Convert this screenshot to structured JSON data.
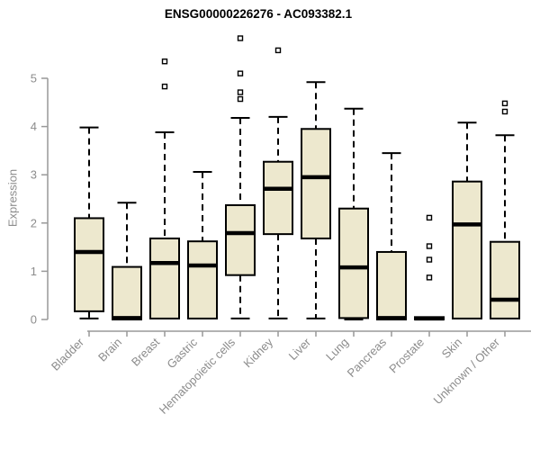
{
  "title": "ENSG00000226276 - AC093382.1",
  "chart_data": {
    "type": "boxplot",
    "title": "ENSG00000226276 - AC093382.1",
    "xlabel": "",
    "ylabel": "Expression",
    "ylim": [
      0,
      5
    ],
    "yticks": [
      0,
      1,
      2,
      3,
      4,
      5
    ],
    "grid": false,
    "categories": [
      "Bladder",
      "Brain",
      "Breast",
      "Gastric",
      "Hematopoietic cells",
      "Kidney",
      "Liver",
      "Lung",
      "Pancreas",
      "Prostate",
      "Skin",
      "Unknown / Other"
    ],
    "series": [
      {
        "category": "Bladder",
        "whisker_low": 0.02,
        "q1": 0.17,
        "median": 1.4,
        "q3": 2.1,
        "whisker_high": 3.98,
        "outliers": []
      },
      {
        "category": "Brain",
        "whisker_low": 0.0,
        "q1": 0.0,
        "median": 0.03,
        "q3": 1.09,
        "whisker_high": 2.42,
        "outliers": []
      },
      {
        "category": "Breast",
        "whisker_low": 0.0,
        "q1": 0.02,
        "median": 1.17,
        "q3": 1.68,
        "whisker_high": 3.88,
        "outliers": [
          4.83,
          5.35
        ]
      },
      {
        "category": "Gastric",
        "whisker_low": 0.0,
        "q1": 0.02,
        "median": 1.12,
        "q3": 1.62,
        "whisker_high": 3.06,
        "outliers": []
      },
      {
        "category": "Hematopoietic cells",
        "whisker_low": 0.02,
        "q1": 0.92,
        "median": 1.79,
        "q3": 2.37,
        "whisker_high": 4.18,
        "outliers": [
          4.57,
          4.71,
          5.1,
          5.83
        ]
      },
      {
        "category": "Kidney",
        "whisker_low": 0.02,
        "q1": 1.77,
        "median": 2.71,
        "q3": 3.27,
        "whisker_high": 4.2,
        "outliers": [
          5.58
        ]
      },
      {
        "category": "Liver",
        "whisker_low": 0.02,
        "q1": 1.68,
        "median": 2.95,
        "q3": 3.95,
        "whisker_high": 4.92,
        "outliers": []
      },
      {
        "category": "Lung",
        "whisker_low": 0.0,
        "q1": 0.03,
        "median": 1.08,
        "q3": 2.3,
        "whisker_high": 4.37,
        "outliers": []
      },
      {
        "category": "Pancreas",
        "whisker_low": 0.0,
        "q1": 0.0,
        "median": 0.03,
        "q3": 1.4,
        "whisker_high": 3.45,
        "outliers": []
      },
      {
        "category": "Prostate",
        "whisker_low": 0.0,
        "q1": 0.0,
        "median": 0.02,
        "q3": 0.05,
        "whisker_high": 0.05,
        "outliers": [
          0.87,
          1.24,
          1.52,
          2.11
        ]
      },
      {
        "category": "Skin",
        "whisker_low": 0.0,
        "q1": 0.02,
        "median": 1.97,
        "q3": 2.86,
        "whisker_high": 4.08,
        "outliers": []
      },
      {
        "category": "Unknown / Other",
        "whisker_low": 0.0,
        "q1": 0.02,
        "median": 0.41,
        "q3": 1.61,
        "whisker_high": 3.82,
        "outliers": [
          4.31,
          4.48
        ]
      }
    ],
    "colors": {
      "box_fill": "#EDE8CE",
      "box_border": "#000000",
      "median": "#000000",
      "whisker": "#000000",
      "outlier_border": "#000000",
      "axis": "#999999",
      "tick_text": "#8C8C8C",
      "title_text": "#000000",
      "background": "#FFFFFF"
    }
  }
}
